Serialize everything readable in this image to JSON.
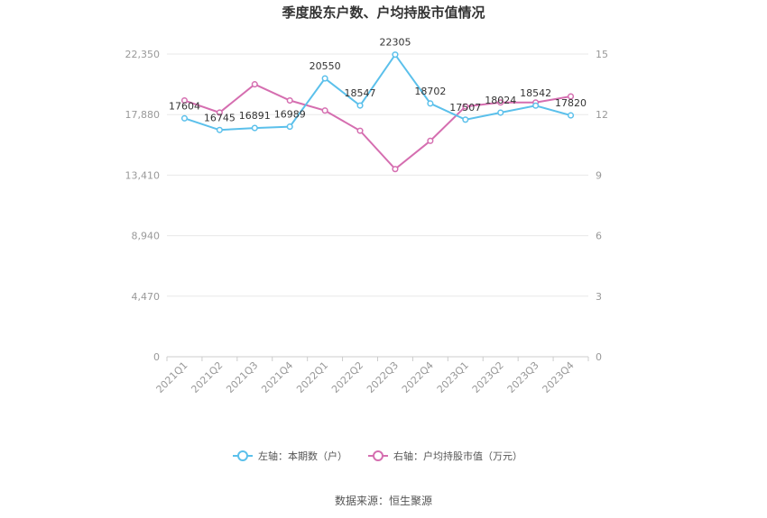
{
  "chart_data": {
    "type": "line",
    "title": "季度股东户数、户均持股市值情况",
    "categories": [
      "2021Q1",
      "2021Q2",
      "2021Q3",
      "2021Q4",
      "2022Q1",
      "2022Q2",
      "2022Q3",
      "2022Q4",
      "2023Q1",
      "2023Q2",
      "2023Q3",
      "2023Q4"
    ],
    "left_axis": {
      "ticks": [
        "0",
        "4,470",
        "8,940",
        "13,410",
        "17,880",
        "22,350"
      ],
      "range": [
        0,
        22350
      ]
    },
    "right_axis": {
      "ticks": [
        "0",
        "3",
        "6",
        "9",
        "12",
        "15"
      ],
      "range": [
        0,
        15
      ]
    },
    "series": [
      {
        "name": "左轴：本期数（户）",
        "axis": "left",
        "color": "#5bc0eb",
        "values": [
          17604,
          16745,
          16891,
          16989,
          20550,
          18547,
          22305,
          18702,
          17507,
          18024,
          18542,
          17820
        ],
        "labels": [
          "17604",
          "16745",
          "16891",
          "16989",
          "20550",
          "18547",
          "22305",
          "18702",
          "17507",
          "18024",
          "18542",
          "17820"
        ]
      },
      {
        "name": "右轴：户均持股市值（万元）",
        "axis": "right",
        "color": "#d56eb0",
        "values": [
          12.7,
          12.1,
          13.5,
          12.7,
          12.2,
          11.2,
          9.3,
          10.7,
          12.4,
          12.6,
          12.6,
          12.9
        ]
      }
    ],
    "grid": true,
    "legend_position": "bottom"
  },
  "source": "数据来源：恒生聚源"
}
